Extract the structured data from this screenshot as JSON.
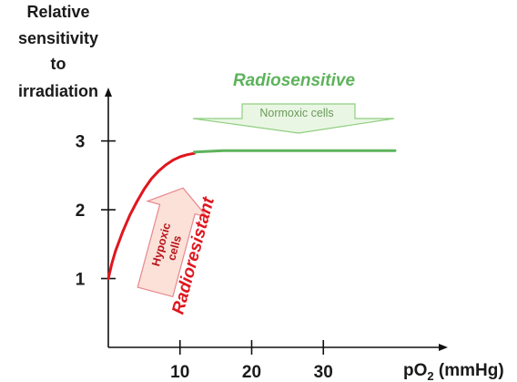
{
  "chart_data": {
    "type": "line",
    "ylabel_lines": [
      "Relative",
      "sensitivity",
      "to",
      "irradiation"
    ],
    "xlabel": {
      "prefix": "pO",
      "subscript": "2",
      "suffix": " (mmHg)"
    },
    "xticks": [
      10,
      20,
      30
    ],
    "yticks": [
      1,
      2,
      3
    ],
    "xlim": [
      0,
      40
    ],
    "ylim": [
      0,
      3.75
    ],
    "series": [
      {
        "color": "#e0161e",
        "x": [
          0,
          0.5,
          1,
          2,
          3,
          4,
          5,
          6,
          7,
          8,
          9,
          10,
          11,
          12
        ],
        "y": [
          1.0,
          1.22,
          1.4,
          1.68,
          1.92,
          2.12,
          2.3,
          2.45,
          2.56,
          2.65,
          2.72,
          2.77,
          2.8,
          2.82
        ]
      },
      {
        "color": "#5db35b",
        "x": [
          12,
          16,
          20,
          25,
          30,
          35,
          40
        ],
        "y": [
          2.84,
          2.86,
          2.86,
          2.86,
          2.86,
          2.86,
          2.86
        ]
      }
    ],
    "annotations": {
      "radiosensitive": "Radiosensitive",
      "normoxic": "Normoxic cells",
      "radioresistant": "Radioresistant",
      "hypoxic_line1": "Hypoxic",
      "hypoxic_line2": "cells"
    }
  }
}
